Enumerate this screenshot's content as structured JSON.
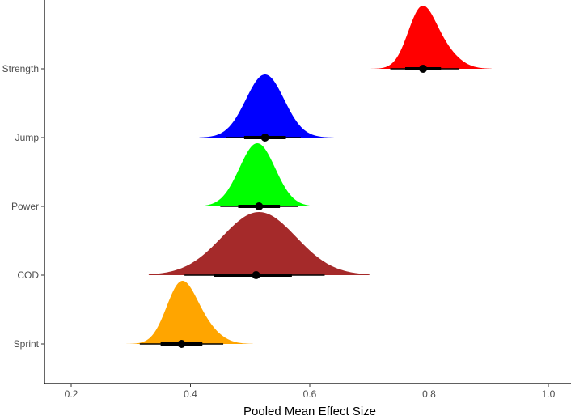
{
  "chart_data": {
    "type": "halfeye",
    "xlabel": "Pooled Mean Effect Size",
    "ylabel": "",
    "xlim": [
      0.155,
      1.05
    ],
    "x_ticks": [
      0.2,
      0.4,
      0.6,
      0.8,
      1.0
    ],
    "x_tick_labels": [
      "0.2",
      "0.4",
      "0.6",
      "0.8",
      "1.0"
    ],
    "grid": false,
    "legend": "none",
    "categories": [
      "Strength",
      "Jump",
      "Power",
      "COD",
      "Sprint"
    ],
    "series": [
      {
        "category": "Strength",
        "color": "#ff0000",
        "point": 0.79,
        "interval_66": [
          0.76,
          0.82
        ],
        "interval_95": [
          0.735,
          0.85
        ],
        "range": [
          0.69,
          0.905
        ],
        "peaks": [
          {
            "mu": 0.785,
            "sd": 0.022,
            "w": 0.75
          },
          {
            "mu": 0.815,
            "sd": 0.028,
            "w": 0.35
          }
        ]
      },
      {
        "category": "Jump",
        "color": "#0000ff",
        "point": 0.525,
        "interval_66": [
          0.49,
          0.56
        ],
        "interval_95": [
          0.46,
          0.585
        ],
        "range": [
          0.415,
          0.64
        ],
        "peaks": [
          {
            "mu": 0.525,
            "sd": 0.032,
            "w": 1.0
          }
        ]
      },
      {
        "category": "Power",
        "color": "#00ff00",
        "point": 0.515,
        "interval_66": [
          0.48,
          0.55
        ],
        "interval_95": [
          0.45,
          0.58
        ],
        "range": [
          0.41,
          0.62
        ],
        "peaks": [
          {
            "mu": 0.512,
            "sd": 0.03,
            "w": 1.0
          }
        ]
      },
      {
        "category": "COD",
        "color": "#a52a2a",
        "point": 0.51,
        "interval_66": [
          0.44,
          0.57
        ],
        "interval_95": [
          0.39,
          0.625
        ],
        "range": [
          0.33,
          0.7
        ],
        "peaks": [
          {
            "mu": 0.515,
            "sd": 0.062,
            "w": 1.0
          }
        ]
      },
      {
        "category": "Sprint",
        "color": "#ffa500",
        "point": 0.385,
        "interval_66": [
          0.35,
          0.42
        ],
        "interval_95": [
          0.315,
          0.455
        ],
        "range": [
          0.27,
          0.505
        ],
        "peaks": [
          {
            "mu": 0.382,
            "sd": 0.024,
            "w": 0.8
          },
          {
            "mu": 0.415,
            "sd": 0.028,
            "w": 0.3
          }
        ]
      }
    ]
  }
}
